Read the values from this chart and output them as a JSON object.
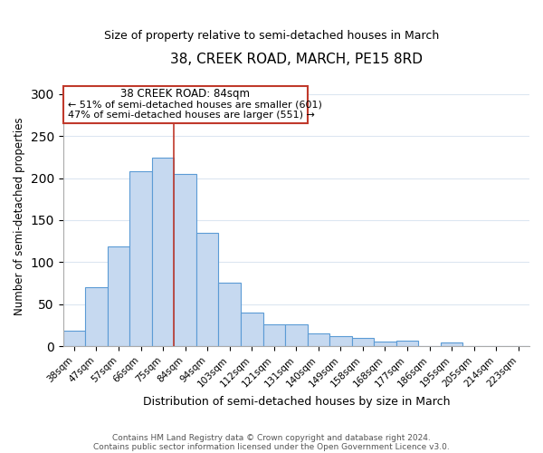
{
  "title": "38, CREEK ROAD, MARCH, PE15 8RD",
  "subtitle": "Size of property relative to semi-detached houses in March",
  "xlabel": "Distribution of semi-detached houses by size in March",
  "ylabel": "Number of semi-detached properties",
  "footer_line1": "Contains HM Land Registry data © Crown copyright and database right 2024.",
  "footer_line2": "Contains public sector information licensed under the Open Government Licence v3.0.",
  "categories": [
    "38sqm",
    "47sqm",
    "57sqm",
    "66sqm",
    "75sqm",
    "84sqm",
    "94sqm",
    "103sqm",
    "112sqm",
    "121sqm",
    "131sqm",
    "140sqm",
    "149sqm",
    "158sqm",
    "168sqm",
    "177sqm",
    "186sqm",
    "195sqm",
    "205sqm",
    "214sqm",
    "223sqm"
  ],
  "values": [
    18,
    70,
    119,
    208,
    224,
    205,
    135,
    76,
    40,
    26,
    26,
    15,
    12,
    10,
    6,
    7,
    0,
    4,
    0,
    0,
    0
  ],
  "bar_color": "#c6d9f0",
  "bar_edge_color": "#5b9bd5",
  "highlight_index": 4,
  "highlight_line_color": "#c0392b",
  "annotation_box_edge_color": "#c0392b",
  "annotation_title": "38 CREEK ROAD: 84sqm",
  "annotation_line1": "← 51% of semi-detached houses are smaller (601)",
  "annotation_line2": "47% of semi-detached houses are larger (551) →",
  "ylim": [
    0,
    310
  ],
  "yticks": [
    0,
    50,
    100,
    150,
    200,
    250,
    300
  ],
  "background_color": "#ffffff",
  "grid_color": "#dce6f1"
}
